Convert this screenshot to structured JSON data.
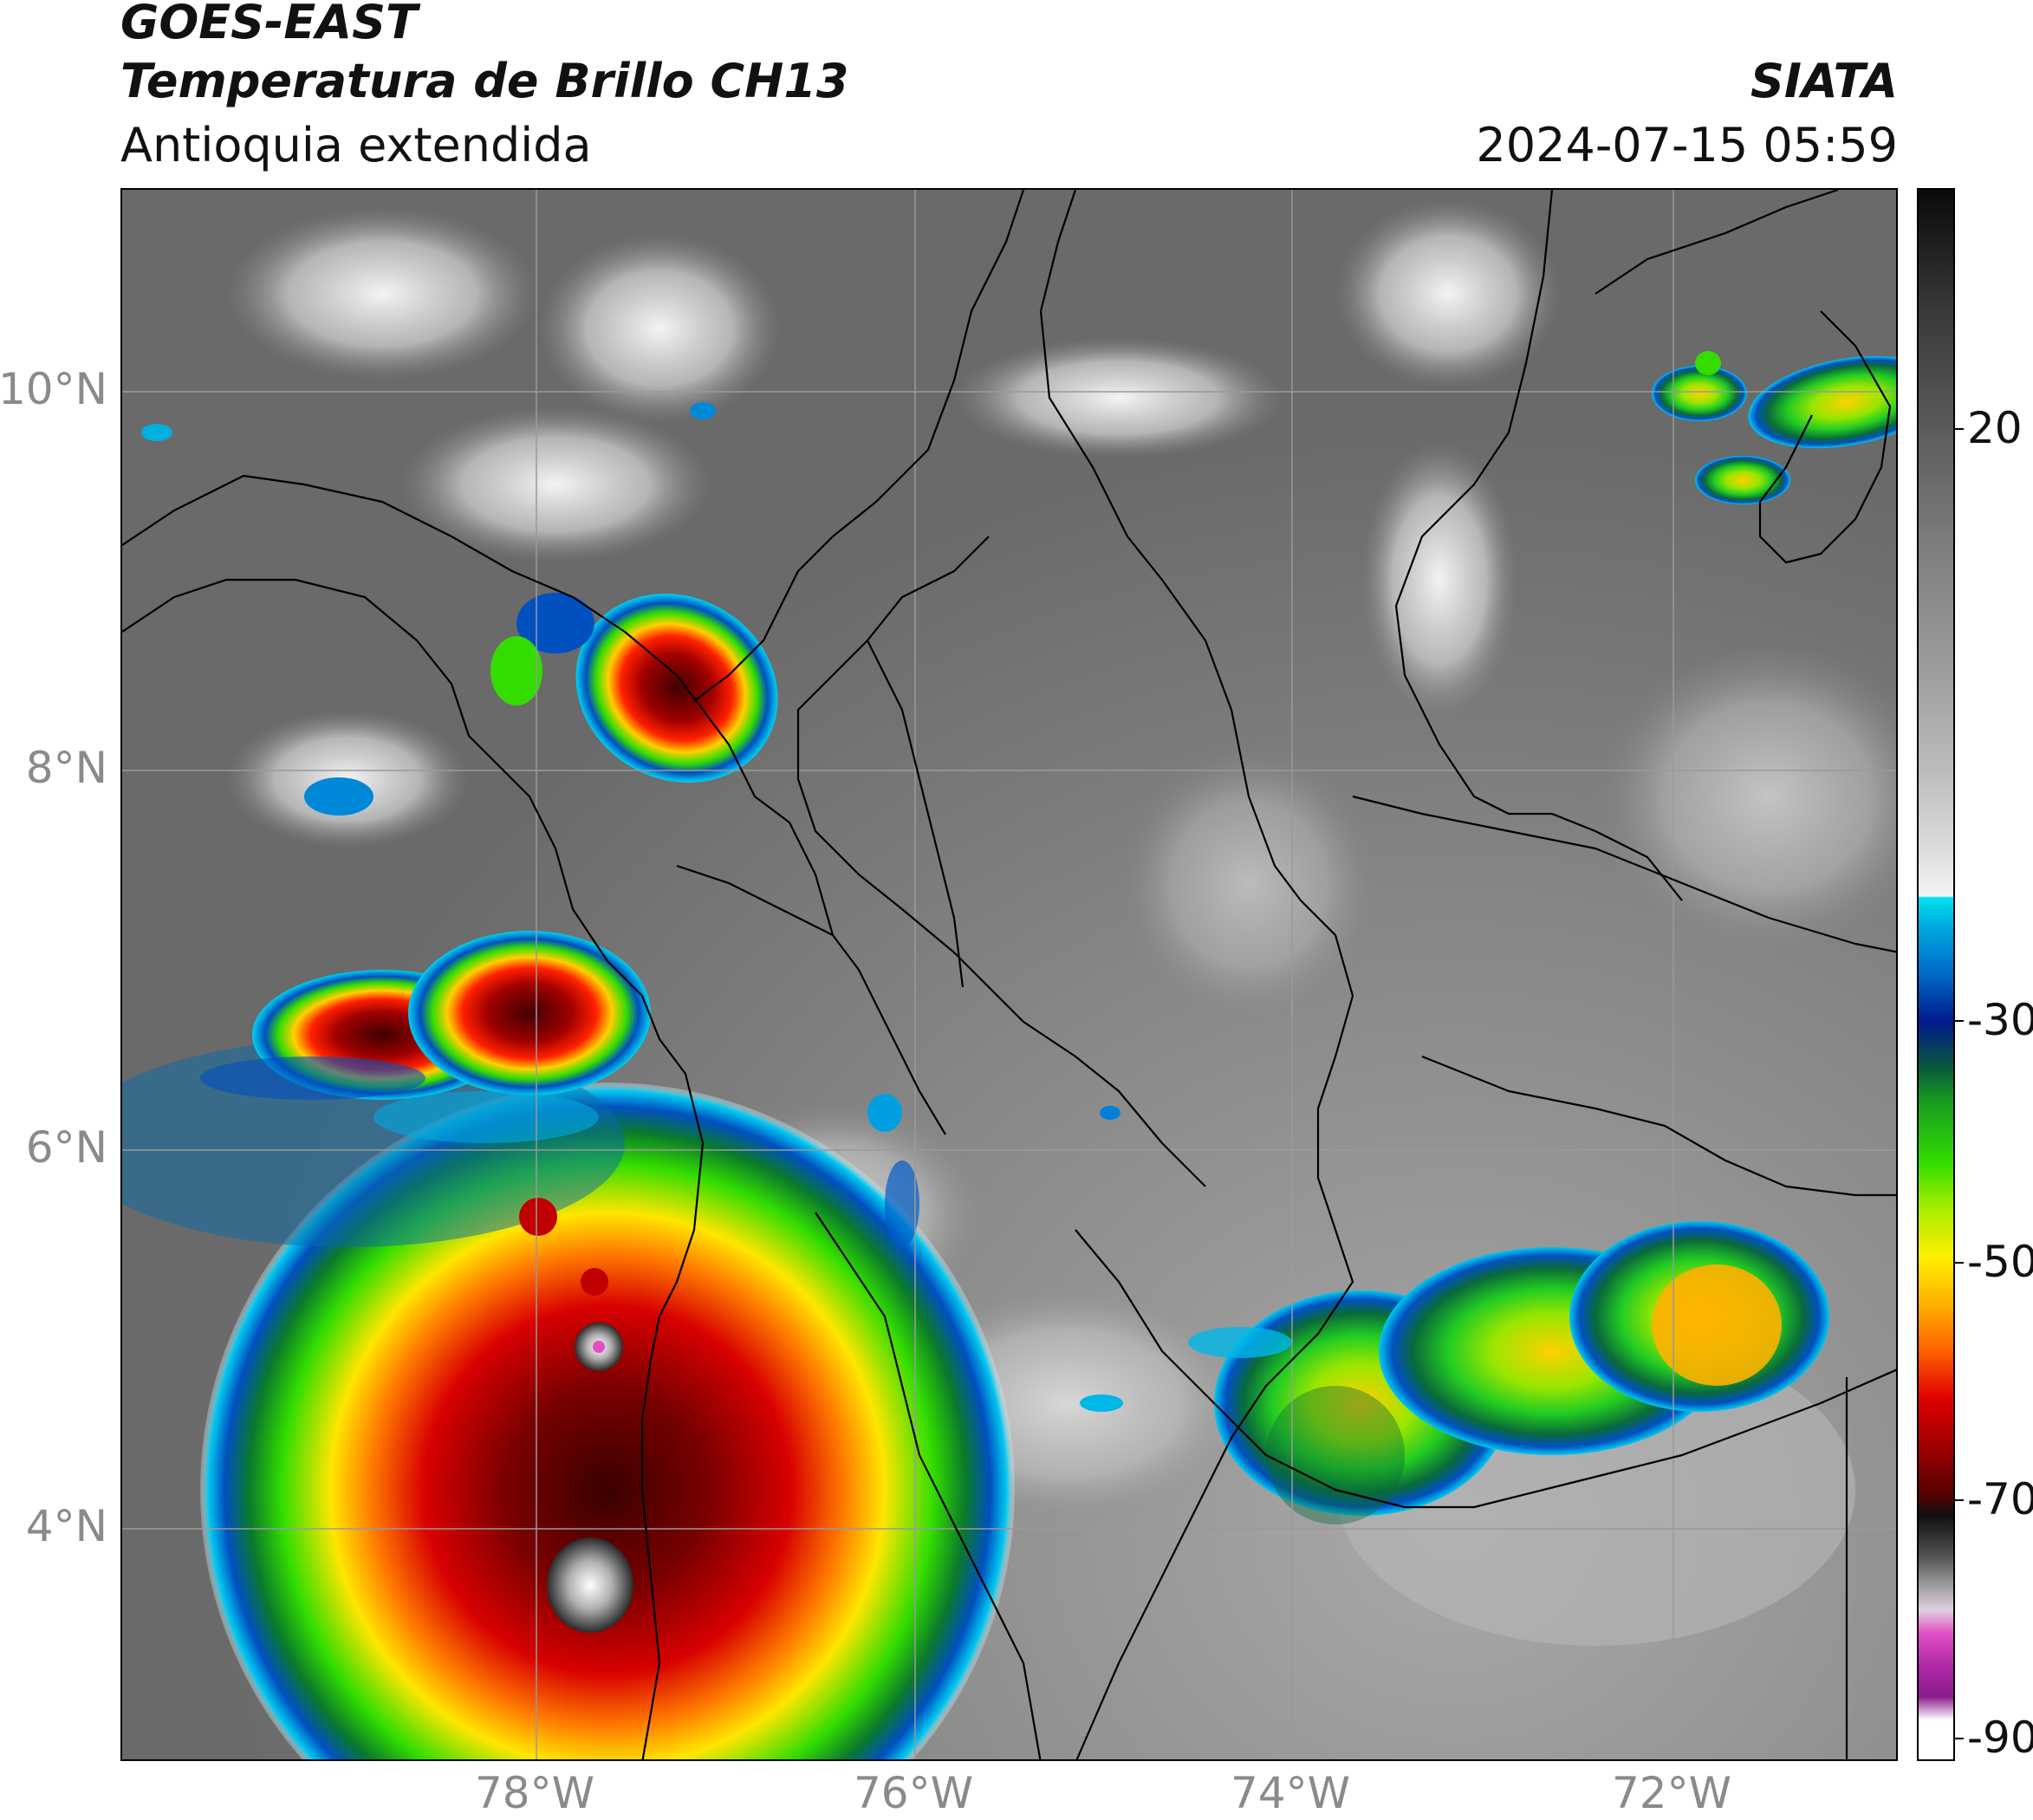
{
  "header": {
    "source": "GOES-EAST",
    "product": "Temperatura de Brillo CH13",
    "region": "Antioquia extendida",
    "agency": "SIATA",
    "datetime": "2024-07-15 05:59"
  },
  "axes": {
    "lat_labels": [
      "10°N",
      "8°N",
      "6°N",
      "4°N"
    ],
    "lon_labels": [
      "78°W",
      "76°W",
      "74°W",
      "72°W"
    ]
  },
  "colorbar": {
    "tick_labels": [
      "20",
      "-30",
      "-50",
      "-70",
      "-90"
    ],
    "palette": {
      "cold_white": "#ffffff",
      "magenta": "#e04fc4",
      "purple": "#8a1a8a",
      "dark_red": "#6a0000",
      "red": "#e00000",
      "orange": "#ff8c00",
      "yellow": "#ffee00",
      "green": "#22dd00",
      "dark_green": "#0a6a2a",
      "navy": "#001a8a",
      "blue": "#0070d0",
      "cyan": "#00d8f0",
      "light_gray": "#f0f0f0",
      "dark_gray": "#101010"
    }
  },
  "map": {
    "background_tones": [
      "#5e5e5e",
      "#7a7a7a",
      "#a8a8a8"
    ],
    "cloud_systems": [
      "northwest-panama-storm",
      "choco-coast-storm",
      "pacific-large-system",
      "eastern-llanos-system",
      "venezuela-guajira-storm"
    ]
  }
}
